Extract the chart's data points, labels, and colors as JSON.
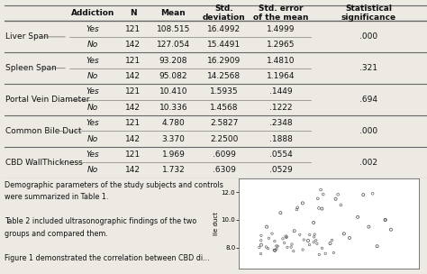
{
  "columns": [
    "Addiction",
    "N",
    "Mean",
    "Std.\ndeviation",
    "Std. error\nof the mean",
    "Statistical\nsignificance"
  ],
  "row_groups": [
    {
      "label": "Liver Span",
      "rows": [
        [
          "Yes",
          "121",
          "108.515",
          "16.4992",
          "1.4999",
          ""
        ],
        [
          "No",
          "142",
          "127.054",
          "15.4491",
          "1.2965",
          ".000"
        ]
      ]
    },
    {
      "label": "Spleen Span",
      "rows": [
        [
          "Yes",
          "121",
          "93.208",
          "16.2909",
          "1.4810",
          ""
        ],
        [
          "No",
          "142",
          "95.082",
          "14.2568",
          "1.1964",
          ".321"
        ]
      ]
    },
    {
      "label": "Portal Vein Diameter",
      "rows": [
        [
          "Yes",
          "121",
          "10.410",
          "1.5935",
          ".1449",
          ""
        ],
        [
          "No",
          "142",
          "10.336",
          "1.4568",
          ".1222",
          ".694"
        ]
      ]
    },
    {
      "label": "Common Bile Duct",
      "rows": [
        [
          "Yes",
          "121",
          "4.780",
          "2.5827",
          ".2348",
          ""
        ],
        [
          "No",
          "142",
          "3.370",
          "2.2500",
          ".1888",
          ".000"
        ]
      ]
    },
    {
      "label": "CBD WallThickness",
      "rows": [
        [
          "Yes",
          "121",
          "1.969",
          ".6099",
          ".0554",
          ""
        ],
        [
          "No",
          "142",
          "1.732",
          ".6309",
          ".0529",
          ".002"
        ]
      ]
    }
  ],
  "footer_lines": [
    "Demographic parameters of the study subjects and controls",
    "were summarized in Table 1.",
    "",
    "Table 2 included ultrasonographic findings of the two",
    "groups and compared them.",
    "",
    "Figure 1 demonstrated the correlation between CBD di..."
  ],
  "bg_color": "#ede9e3",
  "line_color": "#666666",
  "text_color": "#111111",
  "header_font_size": 6.5,
  "cell_font_size": 6.5,
  "label_font_size": 6.5,
  "foot_font_size": 5.8,
  "col_bounds": [
    0.0,
    0.155,
    0.265,
    0.345,
    0.455,
    0.585,
    0.725,
    1.0
  ],
  "title_line": "Table 2 ......ultrasonographic findings of the two groups."
}
